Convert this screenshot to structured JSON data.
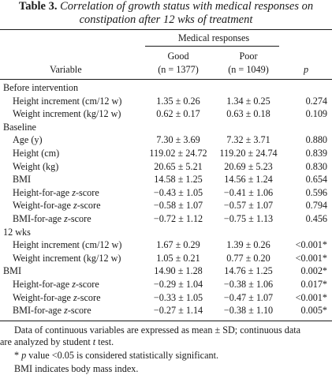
{
  "table": {
    "number": "Table 3.",
    "title_line1": "Correlation of growth status with medical responses on",
    "title_line2": "constipation after 12 wks of treatment",
    "header": {
      "group": "Medical responses",
      "variable": "Variable",
      "good": "Good",
      "good_n": "(n = 1377)",
      "poor": "Poor",
      "poor_n": "(n = 1049)",
      "p": "p"
    },
    "rows": [
      {
        "type": "section",
        "label": "Before intervention"
      },
      {
        "type": "data",
        "label": "Height increment (cm/12 w)",
        "good": "1.35 ± 0.26",
        "poor": "1.34 ± 0.25",
        "p": "0.274"
      },
      {
        "type": "data",
        "label": "Weight increment (kg/12 w)",
        "good": "0.62 ± 0.17",
        "poor": "0.63 ± 0.18",
        "p": "0.109"
      },
      {
        "type": "section",
        "label": "Baseline"
      },
      {
        "type": "data",
        "label": "Age (y)",
        "good": "7.30 ± 3.69",
        "poor": "7.32 ± 3.71",
        "p": "0.880"
      },
      {
        "type": "data",
        "label": "Height (cm)",
        "good": "119.02 ± 24.72",
        "poor": "119.20 ± 24.74",
        "p": "0.839"
      },
      {
        "type": "data",
        "label": "Weight (kg)",
        "good": "20.65 ± 5.21",
        "poor": "20.69 ± 5.23",
        "p": "0.830"
      },
      {
        "type": "data",
        "label": "BMI",
        "good": "14.58 ± 1.25",
        "poor": "14.56 ± 1.24",
        "p": "0.654"
      },
      {
        "type": "data",
        "label": "Height-for-age z-score",
        "good": "−0.43 ± 1.05",
        "poor": "−0.41 ± 1.06",
        "p": "0.596"
      },
      {
        "type": "data",
        "label": "Weight-for-age z-score",
        "good": "−0.58 ± 1.07",
        "poor": "−0.57 ± 1.07",
        "p": "0.794"
      },
      {
        "type": "data",
        "label": "BMI-for-age z-score",
        "good": "−0.72 ± 1.12",
        "poor": "−0.75 ± 1.13",
        "p": "0.456"
      },
      {
        "type": "section",
        "label": "12 wks"
      },
      {
        "type": "data",
        "label": "Height increment (cm/12 w)",
        "good": "1.67 ± 0.29",
        "poor": "1.39 ± 0.26",
        "p": "<0.001*"
      },
      {
        "type": "data",
        "label": "Weight increment (kg/12 w)",
        "good": "1.05 ± 0.21",
        "poor": "0.77 ± 0.20",
        "p": "<0.001*"
      },
      {
        "type": "sectiondata",
        "label": "BMI",
        "good": "14.90 ± 1.28",
        "poor": "14.76 ± 1.25",
        "p": "0.002*"
      },
      {
        "type": "data",
        "label": "Height-for-age z-score",
        "good": "−0.29 ± 1.04",
        "poor": "−0.38 ± 1.06",
        "p": "0.017*"
      },
      {
        "type": "data",
        "label": "Weight-for-age z-score",
        "good": "−0.33 ± 1.05",
        "poor": "−0.47 ± 1.07",
        "p": "<0.001*"
      },
      {
        "type": "data",
        "label": "BMI-for-age z-score",
        "good": "−0.27 ± 1.14",
        "poor": "−0.38 ± 1.10",
        "p": "0.005*"
      }
    ],
    "footnotes": {
      "line1": "Data of continuous variables are expressed as mean ± SD; continuous data",
      "line2": "are analyzed by student t test.",
      "line3": "* p value <0.05 is considered statistically significant.",
      "line4": "BMI indicates body mass index."
    }
  }
}
